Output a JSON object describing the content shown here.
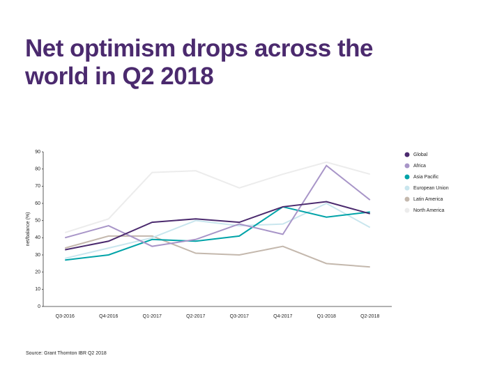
{
  "chart_data": {
    "type": "line",
    "title": "Net optimism drops across the world in Q2 2018",
    "y_label": "net/balance (%)",
    "source": "Source: Grant Thornton IBR Q2 2018",
    "categories": [
      "Q3-2016",
      "Q4-2016",
      "Q1-2017",
      "Q2-2017",
      "Q3-2017",
      "Q4-2017",
      "Q1-2018",
      "Q2-2018"
    ],
    "series": [
      {
        "name": "Global",
        "color": "#4b2a6e",
        "values": [
          33,
          38,
          49,
          51,
          49,
          58,
          61,
          54
        ]
      },
      {
        "name": "Africa",
        "color": "#a895c8",
        "values": [
          40,
          47,
          35,
          39,
          48,
          42,
          82,
          62
        ]
      },
      {
        "name": "Asia Pacific",
        "color": "#00a3a8",
        "values": [
          27,
          30,
          39,
          38,
          41,
          58,
          52,
          55
        ]
      },
      {
        "name": "European Union",
        "color": "#c9e6ee",
        "values": [
          28,
          34,
          40,
          50,
          47,
          48,
          60,
          46
        ]
      },
      {
        "name": "Latin America",
        "color": "#c4b8ad",
        "values": [
          34,
          41,
          41,
          31,
          30,
          35,
          25,
          23
        ]
      },
      {
        "name": "North America",
        "color": "#ececec",
        "values": [
          43,
          51,
          78,
          79,
          69,
          77,
          84,
          77
        ]
      }
    ],
    "ylim": [
      0,
      90
    ],
    "yticks": [
      0,
      10,
      20,
      30,
      40,
      50,
      60,
      70,
      80,
      90
    ],
    "grid": false,
    "legend": "right"
  }
}
